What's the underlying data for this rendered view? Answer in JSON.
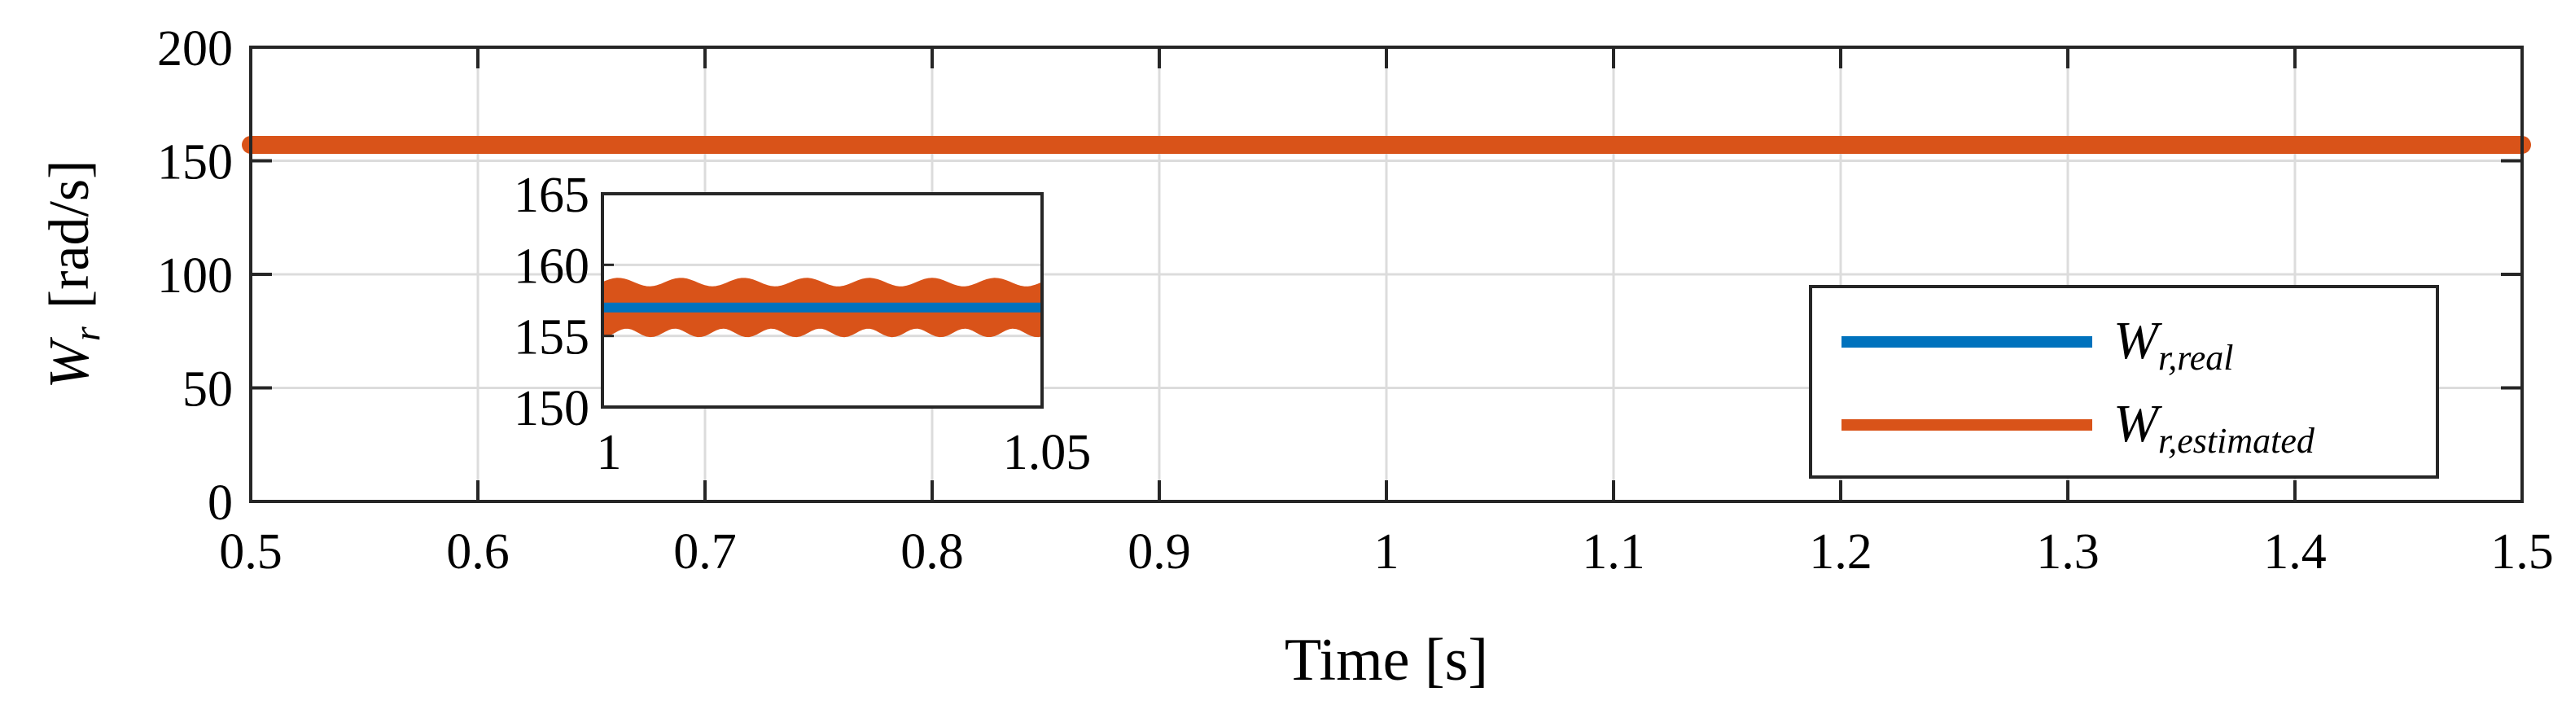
{
  "chart_data": {
    "type": "line",
    "xlabel": "Time [s]",
    "ylabel_main": "W",
    "ylabel_sub": "r",
    "ylabel_unit": "[rad/s]",
    "xlim": [
      0.5,
      1.5
    ],
    "ylim": [
      0,
      200
    ],
    "x_ticks": [
      0.5,
      0.6,
      0.7,
      0.8,
      0.9,
      1,
      1.1,
      1.2,
      1.3,
      1.4,
      1.5
    ],
    "y_ticks": [
      0,
      50,
      100,
      150,
      200
    ],
    "grid": true,
    "legend_position": "bottom-right",
    "series": [
      {
        "name_main": "W",
        "name_sub": "r,real",
        "color": "#0072BD",
        "constant_value": 157,
        "ripple_amplitude": 0
      },
      {
        "name_main": "W",
        "name_sub": "r,estimated",
        "color": "#D95319",
        "constant_value": 157,
        "ripple_amplitude": 2
      }
    ],
    "inset": {
      "xlim": [
        1,
        1.05
      ],
      "ylim": [
        150,
        165
      ],
      "x_ticks": [
        1,
        1.05
      ],
      "y_ticks": [
        150,
        155,
        160,
        165
      ],
      "grid": true
    }
  }
}
